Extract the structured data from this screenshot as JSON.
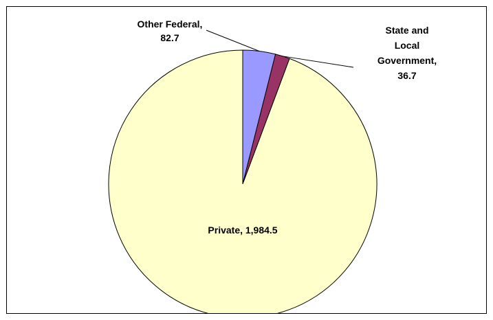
{
  "chart_data": {
    "type": "pie",
    "title": "",
    "slices": [
      {
        "name": "Other Federal",
        "value": 82.7,
        "label_lines": [
          "Other Federal,",
          "82.7"
        ],
        "color": "#9999ff"
      },
      {
        "name": "State and Local Government",
        "value": 36.7,
        "label_lines": [
          "State and",
          "Local",
          "Government,",
          "36.7"
        ],
        "color": "#993366"
      },
      {
        "name": "Private",
        "value": 1984.5,
        "label_lines": [
          "Private, 1,984.5"
        ],
        "color": "#ffffcc"
      }
    ],
    "start_angle_deg": 0,
    "direction": "clockwise",
    "legend": "none",
    "border_color": "#000000"
  }
}
